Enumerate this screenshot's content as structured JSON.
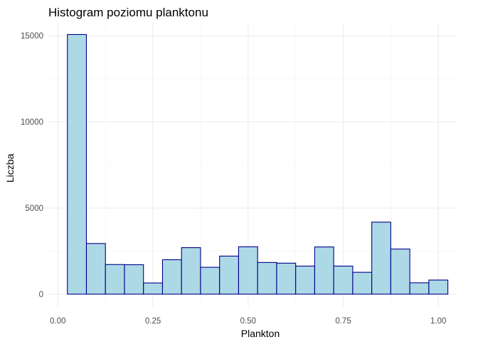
{
  "chart_data": {
    "type": "bar",
    "subtype": "histogram",
    "title": "Histogram poziomu planktonu",
    "xlabel": "Plankton",
    "ylabel": "Liczba",
    "xlim": [
      -0.025,
      1.05
    ],
    "ylim": [
      -750,
      15750
    ],
    "x_ticks": [
      0.0,
      0.25,
      0.5,
      0.75,
      1.0
    ],
    "x_tick_labels": [
      "0.00",
      "0.25",
      "0.50",
      "0.75",
      "1.00"
    ],
    "y_ticks": [
      0,
      5000,
      10000,
      15000
    ],
    "y_tick_labels": [
      "0",
      "5000",
      "10000",
      "15000"
    ],
    "bin_edges": [
      0.025,
      0.075,
      0.125,
      0.175,
      0.225,
      0.275,
      0.325,
      0.375,
      0.425,
      0.475,
      0.525,
      0.575,
      0.625,
      0.675,
      0.725,
      0.775,
      0.825,
      0.875,
      0.925,
      0.975,
      1.025
    ],
    "values": [
      15070,
      2940,
      1720,
      1710,
      650,
      2000,
      2700,
      1560,
      2210,
      2750,
      1840,
      1800,
      1630,
      2740,
      1630,
      1270,
      4180,
      2620,
      660,
      820
    ],
    "grid": true,
    "bar_fill": "#add8e6",
    "bar_outline": "#00008b"
  }
}
